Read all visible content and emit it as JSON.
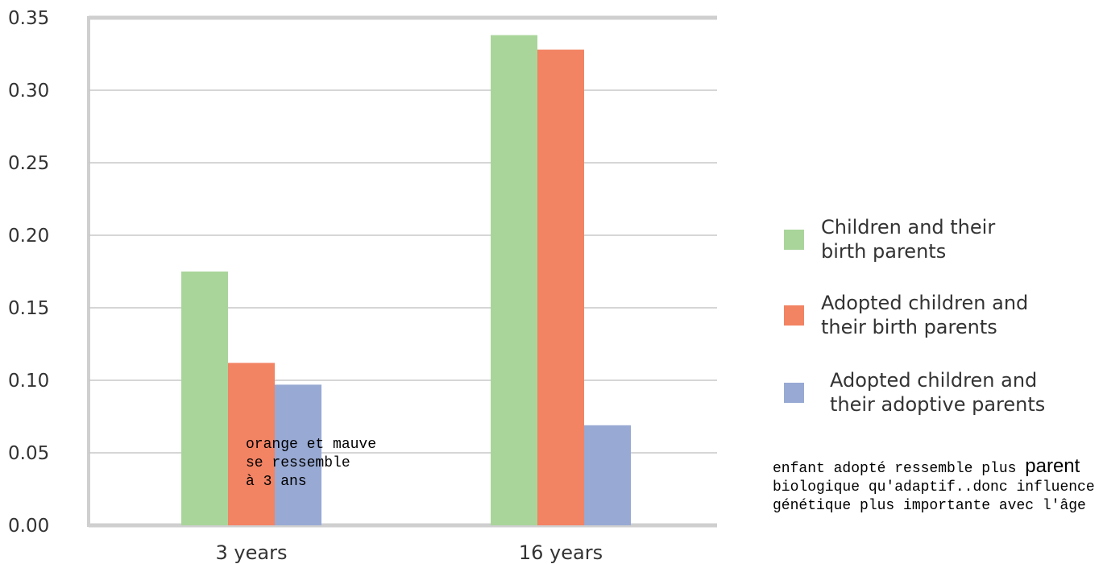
{
  "chart_data": {
    "type": "bar",
    "categories": [
      "3 years",
      "16 years"
    ],
    "series": [
      {
        "name": "Children and their birth parents",
        "values": [
          0.175,
          0.338
        ],
        "color": "#a9d59a"
      },
      {
        "name": "Adopted children and their birth parents",
        "values": [
          0.112,
          0.328
        ],
        "color": "#f28363"
      },
      {
        "name": "Adopted children and their adoptive parents",
        "values": [
          0.097,
          0.069
        ],
        "color": "#98a9d3"
      }
    ],
    "legend_lines": [
      [
        "Children and their",
        "birth parents"
      ],
      [
        "Adopted children and",
        "their birth parents"
      ],
      [
        "Adopted children and",
        "their adoptive parents"
      ]
    ],
    "yticks": [
      "0.00",
      "0.05",
      "0.10",
      "0.15",
      "0.20",
      "0.25",
      "0.30",
      "0.35"
    ],
    "ylim": [
      0,
      0.35
    ],
    "grid": true,
    "legend_position": "right",
    "title": "",
    "xlabel": "",
    "ylabel": ""
  },
  "annotations": {
    "bar_note": "orange et mauve\nse ressemble\nà 3 ans",
    "side_note_before": "enfant adopté ressemble plus",
    "side_note_big": "parent",
    "side_note_after": "biologique qu'adaptif..donc influence génétique plus importante avec l'âge"
  }
}
